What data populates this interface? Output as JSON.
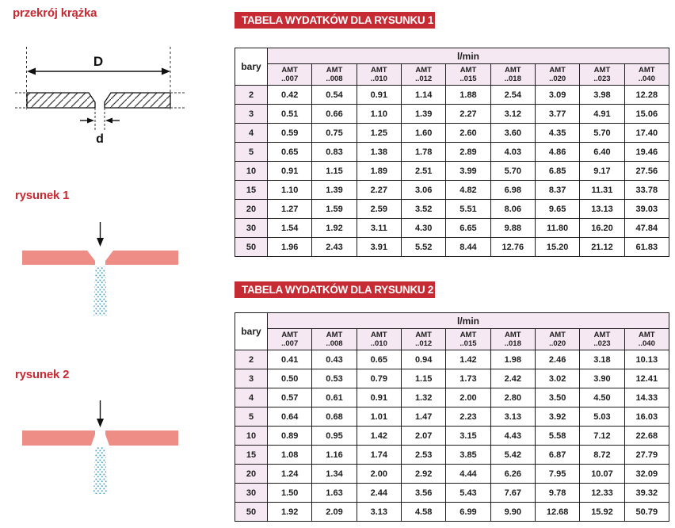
{
  "colors": {
    "accent-red": "#c62a32",
    "disc-pink": "#ee8c86",
    "spray-blue": "#3f9fc4",
    "header-pink": "#f6e8f2",
    "border-dark": "#1c1c1c"
  },
  "left_panel": {
    "cross_section_title": "przekrój krążka",
    "figure1_title": "rysunek 1",
    "figure2_title": "rysunek 2",
    "dim_outer": "D",
    "dim_hole": "d"
  },
  "tables": [
    {
      "title": "TABELA WYDATKÓW DLA RYSUNKU 1",
      "unit": "l/min",
      "row_header": "bary",
      "amt_label": "AMT",
      "sizes": [
        "..007",
        "..008",
        "..010",
        "..012",
        "..015",
        "..018",
        "..020",
        "..023",
        "..040"
      ],
      "rows": [
        {
          "bar": "2",
          "values": [
            "0.42",
            "0.54",
            "0.91",
            "1.14",
            "1.88",
            "2.54",
            "3.09",
            "3.98",
            "12.28"
          ]
        },
        {
          "bar": "3",
          "values": [
            "0.51",
            "0.66",
            "1.10",
            "1.39",
            "2.27",
            "3.12",
            "3.77",
            "4.91",
            "15.06"
          ]
        },
        {
          "bar": "4",
          "values": [
            "0.59",
            "0.75",
            "1.25",
            "1.60",
            "2.60",
            "3.60",
            "4.35",
            "5.70",
            "17.40"
          ]
        },
        {
          "bar": "5",
          "values": [
            "0.65",
            "0.83",
            "1.38",
            "1.78",
            "2.89",
            "4.03",
            "4.86",
            "6.40",
            "19.46"
          ]
        },
        {
          "bar": "10",
          "values": [
            "0.91",
            "1.15",
            "1.89",
            "2.51",
            "3.99",
            "5.70",
            "6.85",
            "9.17",
            "27.56"
          ]
        },
        {
          "bar": "15",
          "values": [
            "1.10",
            "1.39",
            "2.27",
            "3.06",
            "4.82",
            "6.98",
            "8.37",
            "11.31",
            "33.78"
          ]
        },
        {
          "bar": "20",
          "values": [
            "1.27",
            "1.59",
            "2.59",
            "3.52",
            "5.51",
            "8.06",
            "9.65",
            "13.13",
            "39.03"
          ]
        },
        {
          "bar": "30",
          "values": [
            "1.54",
            "1.92",
            "3.11",
            "4.30",
            "6.65",
            "9.88",
            "11.80",
            "16.20",
            "47.84"
          ]
        },
        {
          "bar": "50",
          "values": [
            "1.96",
            "2.43",
            "3.91",
            "5.52",
            "8.44",
            "12.76",
            "15.20",
            "21.12",
            "61.83"
          ]
        }
      ]
    },
    {
      "title": "TABELA WYDATKÓW DLA RYSUNKU 2",
      "unit": "l/min",
      "row_header": "bary",
      "amt_label": "AMT",
      "sizes": [
        "..007",
        "..008",
        "..010",
        "..012",
        "..015",
        "..018",
        "..020",
        "..023",
        "..040"
      ],
      "rows": [
        {
          "bar": "2",
          "values": [
            "0.41",
            "0.43",
            "0.65",
            "0.94",
            "1.42",
            "1.98",
            "2.46",
            "3.18",
            "10.13"
          ]
        },
        {
          "bar": "3",
          "values": [
            "0.50",
            "0.53",
            "0.79",
            "1.15",
            "1.73",
            "2.42",
            "3.02",
            "3.90",
            "12.41"
          ]
        },
        {
          "bar": "4",
          "values": [
            "0.57",
            "0.61",
            "0.91",
            "1.32",
            "2.00",
            "2.80",
            "3.50",
            "4.50",
            "14.33"
          ]
        },
        {
          "bar": "5",
          "values": [
            "0.64",
            "0.68",
            "1.01",
            "1.47",
            "2.23",
            "3.13",
            "3.92",
            "5.03",
            "16.03"
          ]
        },
        {
          "bar": "10",
          "values": [
            "0.89",
            "0.95",
            "1.42",
            "2.07",
            "3.15",
            "4.43",
            "5.58",
            "7.12",
            "22.68"
          ]
        },
        {
          "bar": "15",
          "values": [
            "1.08",
            "1.16",
            "1.74",
            "2.53",
            "3.85",
            "5.42",
            "6.87",
            "8.72",
            "27.79"
          ]
        },
        {
          "bar": "20",
          "values": [
            "1.24",
            "1.34",
            "2.00",
            "2.92",
            "4.44",
            "6.26",
            "7.95",
            "10.07",
            "32.09"
          ]
        },
        {
          "bar": "30",
          "values": [
            "1.50",
            "1.63",
            "2.44",
            "3.56",
            "5.43",
            "7.67",
            "9.78",
            "12.33",
            "39.32"
          ]
        },
        {
          "bar": "50",
          "values": [
            "1.92",
            "2.09",
            "3.13",
            "4.58",
            "6.99",
            "9.90",
            "12.68",
            "15.92",
            "50.79"
          ]
        }
      ]
    }
  ]
}
